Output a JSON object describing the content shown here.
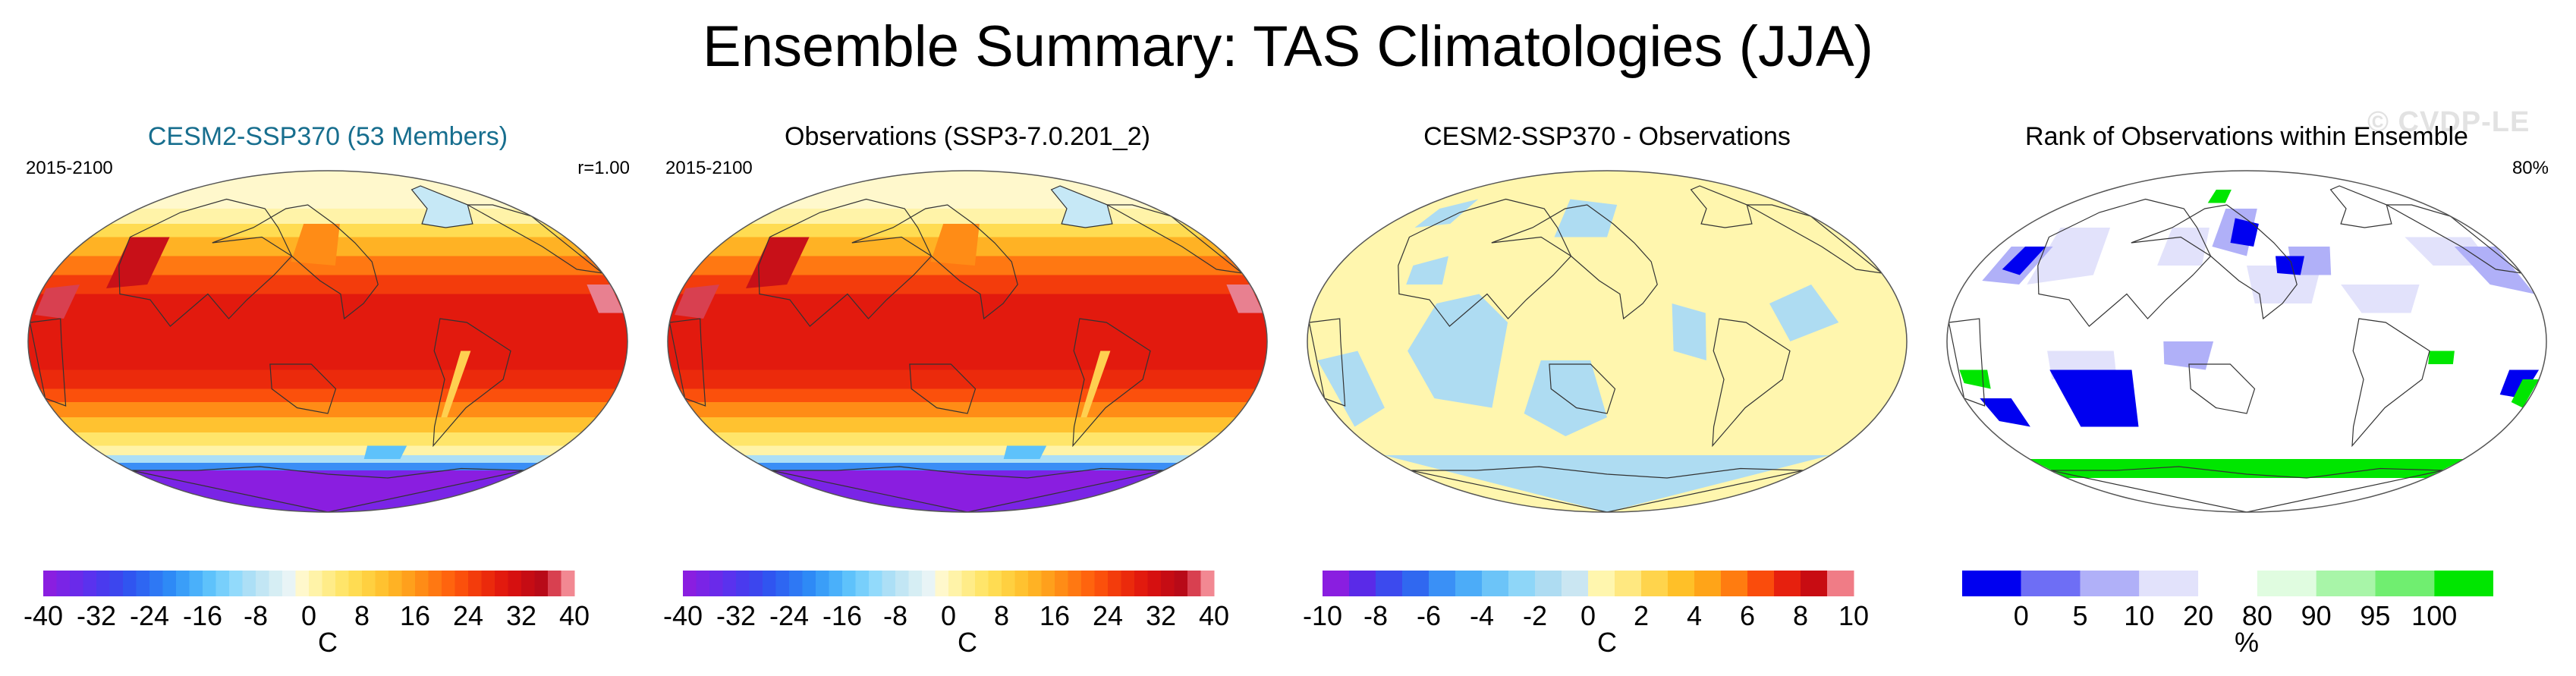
{
  "title": "Ensemble Summary: TAS Climatologies (JJA)",
  "watermark": "© CVDP-LE",
  "chart_data": [
    {
      "type": "heatmap",
      "title": "CESM2-SSP370 (53 Members)",
      "title_color": "#176e8e",
      "left_label": "2015-2100",
      "right_label": "r=1.00",
      "colorbar": {
        "levels": [
          -40,
          -38,
          -36,
          -34,
          -32,
          -30,
          -28,
          -26,
          -24,
          -22,
          -20,
          -18,
          -16,
          -14,
          -12,
          -10,
          -8,
          -6,
          -4,
          -2,
          0,
          2,
          4,
          6,
          8,
          10,
          12,
          14,
          16,
          18,
          20,
          22,
          24,
          26,
          28,
          30,
          32,
          34,
          36,
          38,
          40
        ],
        "tick_labels": [
          "-40",
          "-32",
          "-24",
          "-16",
          "-8",
          "0",
          "8",
          "16",
          "24",
          "32",
          "40"
        ],
        "units": "C"
      }
    },
    {
      "type": "heatmap",
      "title": "Observations (SSP3-7.0.201_2)",
      "left_label": "2015-2100",
      "right_label": "",
      "colorbar": {
        "levels": [
          -40,
          -38,
          -36,
          -34,
          -32,
          -30,
          -28,
          -26,
          -24,
          -22,
          -20,
          -18,
          -16,
          -14,
          -12,
          -10,
          -8,
          -6,
          -4,
          -2,
          0,
          2,
          4,
          6,
          8,
          10,
          12,
          14,
          16,
          18,
          20,
          22,
          24,
          26,
          28,
          30,
          32,
          34,
          36,
          38,
          40
        ],
        "tick_labels": [
          "-40",
          "-32",
          "-24",
          "-16",
          "-8",
          "0",
          "8",
          "16",
          "24",
          "32",
          "40"
        ],
        "units": "C"
      }
    },
    {
      "type": "heatmap",
      "title": "CESM2-SSP370 - Observations",
      "left_label": "",
      "right_label": "",
      "colorbar": {
        "levels": [
          -10,
          -9,
          -8,
          -7,
          -6,
          -5,
          -4,
          -3,
          -2,
          -1,
          0,
          1,
          2,
          3,
          4,
          5,
          6,
          7,
          8,
          9,
          10
        ],
        "tick_labels": [
          "-10",
          "-8",
          "-6",
          "-4",
          "-2",
          "0",
          "2",
          "4",
          "6",
          "8",
          "10"
        ],
        "units": "C"
      }
    },
    {
      "type": "heatmap",
      "title": "Rank of Observations within Ensemble",
      "left_label": "",
      "right_label": "80%",
      "colorbar": {
        "boundaries": [
          0,
          5,
          10,
          20,
          80,
          90,
          95,
          100
        ],
        "tick_labels": [
          "0",
          "5",
          "10",
          "20",
          "80",
          "90",
          "95",
          "100"
        ],
        "colors": [
          "#0000f0",
          "#6e6ef5",
          "#b0b0f8",
          "#e2e2fb",
          "#ffffff",
          "#e0fce0",
          "#a8f5a8",
          "#70ee70",
          "#00e600"
        ],
        "units": "%"
      }
    }
  ]
}
